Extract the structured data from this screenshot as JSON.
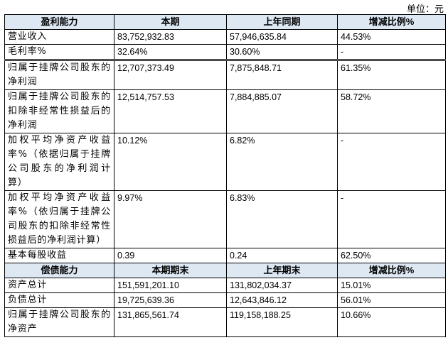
{
  "unit": "单位：元",
  "sections": [
    {
      "header": [
        "盈利能力",
        "本期",
        "上年同期",
        "增减比例%"
      ],
      "rows": [
        [
          "营业收入",
          "83,752,932.83",
          "57,946,635.84",
          "44.53%"
        ],
        [
          "毛利率%",
          "32.64%",
          "30.60%",
          "-"
        ],
        [
          "归属于挂牌公司股东的净利润",
          "12,707,373.49",
          "7,875,848.71",
          "61.35%"
        ],
        [
          "归属于挂牌公司股东的扣除非经常性损益后的净利润",
          "12,514,757.53",
          "7,884,885.07",
          "58.72%"
        ],
        [
          "加权平均净资产收益率%（依据归属于挂牌公司股东的净利润计算）",
          "10.12%",
          "6.82%",
          "-"
        ],
        [
          "加权平均净资产收益率%（依归属于挂牌公司股东的扣除非经常性损益后的净利润计算）",
          "9.97%",
          "6.83%",
          "-"
        ],
        [
          "基本每股收益",
          "0.39",
          "0.24",
          "62.50%"
        ]
      ]
    },
    {
      "header": [
        "偿债能力",
        "本期期末",
        "上年期末",
        "增减比例%"
      ],
      "rows": [
        [
          "资产总计",
          "151,591,201.10",
          "131,802,034.37",
          "15.01%"
        ],
        [
          "负债总计",
          "19,725,639.36",
          "12,643,846.12",
          "56.01%"
        ],
        [
          "归属于挂牌公司股东的净资产",
          "131,865,561.74",
          "119,158,188.25",
          "10.66%"
        ]
      ]
    }
  ]
}
